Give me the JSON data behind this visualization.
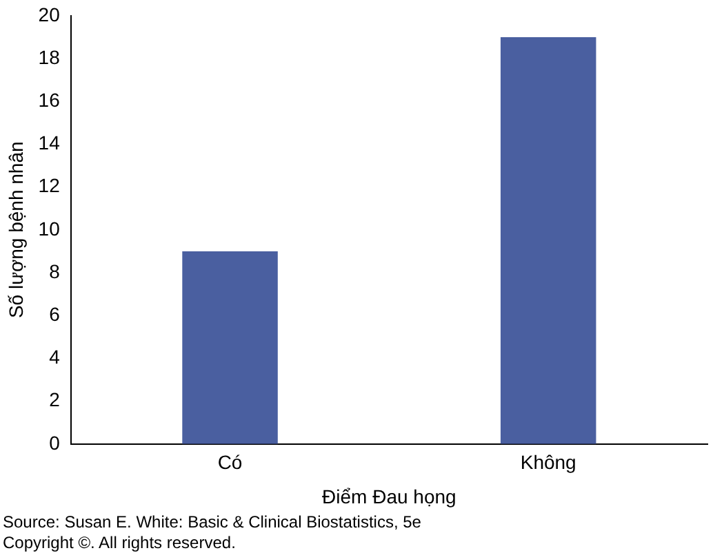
{
  "chart_data": {
    "type": "bar",
    "xlabel": "Điểm Đau họng",
    "ylabel": "Số lượng bệnh nhân",
    "categories": [
      "Có",
      "Không"
    ],
    "values": [
      9,
      19
    ],
    "color": "#4a5fa0",
    "ylim": [
      0,
      20
    ],
    "yticks": [
      0,
      2,
      4,
      6,
      8,
      10,
      12,
      14,
      16,
      18,
      20
    ],
    "grid": false,
    "legend": false,
    "annotations": [
      "Source: Susan E. White: Basic & Clinical Biostatistics, 5e",
      "Copyright ©. All rights reserved."
    ]
  }
}
